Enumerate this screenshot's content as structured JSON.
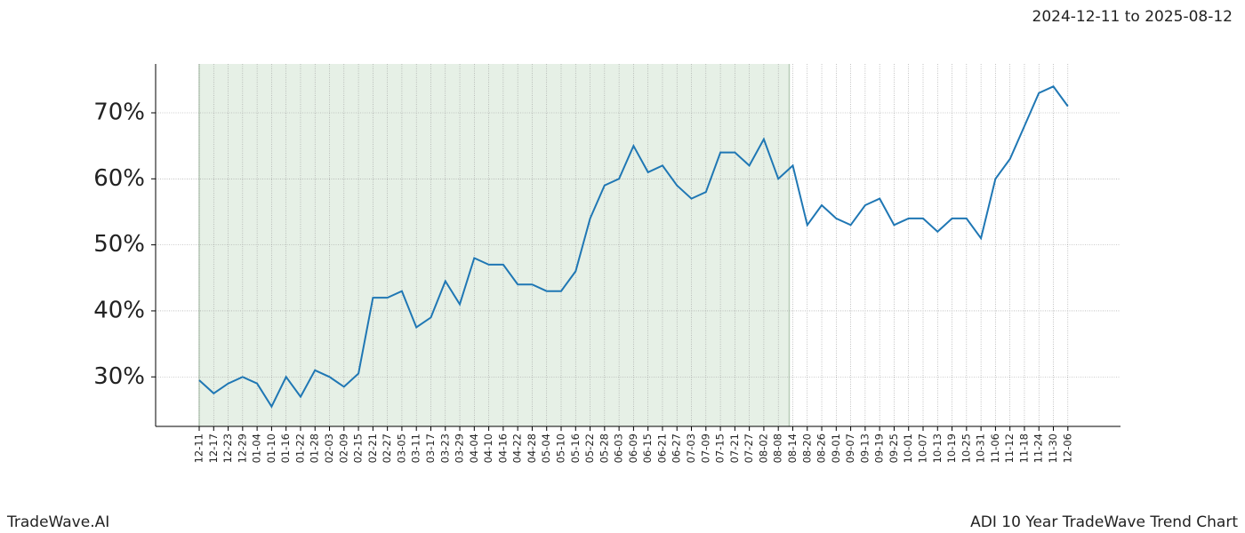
{
  "chart_data": {
    "type": "line",
    "subtitle": "2024-12-11 to 2025-08-12",
    "brand": "TradeWave.AI",
    "title": "ADI 10 Year TradeWave Trend Chart",
    "categories": [
      "12-11",
      "12-17",
      "12-23",
      "12-29",
      "01-04",
      "01-10",
      "01-16",
      "01-22",
      "01-28",
      "02-03",
      "02-09",
      "02-15",
      "02-21",
      "02-27",
      "03-05",
      "03-11",
      "03-17",
      "03-23",
      "03-29",
      "04-04",
      "04-10",
      "04-16",
      "04-22",
      "04-28",
      "05-04",
      "05-10",
      "05-16",
      "05-22",
      "05-28",
      "06-03",
      "06-09",
      "06-15",
      "06-21",
      "06-27",
      "07-03",
      "07-09",
      "07-15",
      "07-21",
      "07-27",
      "08-02",
      "08-08",
      "08-14",
      "08-20",
      "08-26",
      "09-01",
      "09-07",
      "09-13",
      "09-19",
      "09-25",
      "10-01",
      "10-07",
      "10-13",
      "10-19",
      "10-25",
      "10-31",
      "11-06",
      "11-12",
      "11-18",
      "11-24",
      "11-30",
      "12-06"
    ],
    "values": [
      29.5,
      27.5,
      29,
      30,
      29,
      25.5,
      30,
      27,
      31,
      30,
      28.5,
      30.5,
      42,
      42,
      43,
      37.5,
      39,
      44.5,
      41,
      48,
      47,
      47,
      44,
      44,
      43,
      43,
      46,
      54,
      59,
      60,
      65,
      61,
      62,
      59,
      57,
      58,
      64,
      64,
      62,
      66,
      60,
      62,
      53,
      56,
      54,
      53,
      56,
      57,
      53,
      54,
      54,
      52,
      54,
      54,
      51,
      60,
      63,
      68,
      73,
      74,
      71
    ],
    "color": "#1f77b4",
    "shaded_range": [
      "12-11",
      "08-14"
    ],
    "shade_color": "#e6f0e6",
    "ylim": [
      22.5,
      77.4
    ],
    "yticks": [
      {
        "value": 30,
        "label": "30%"
      },
      {
        "value": 40,
        "label": "40%"
      },
      {
        "value": 50,
        "label": "50%"
      },
      {
        "value": 60,
        "label": "60%"
      },
      {
        "value": 70,
        "label": "70%"
      }
    ],
    "grid": true
  }
}
